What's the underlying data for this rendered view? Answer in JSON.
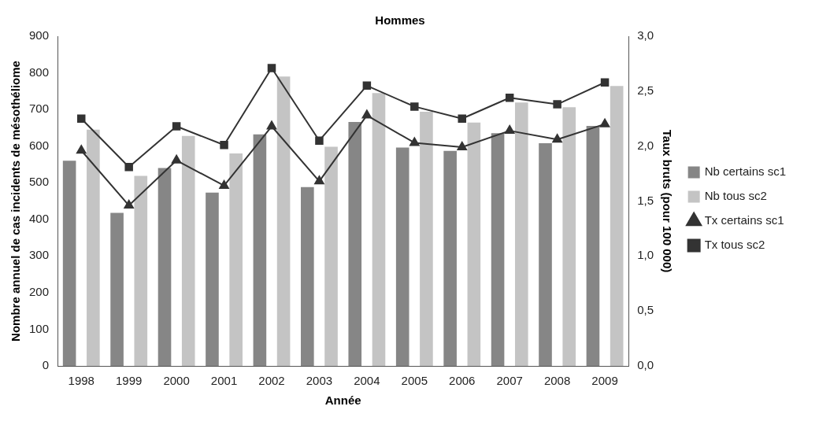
{
  "chart_data": {
    "type": "bar",
    "title": "Hommes",
    "xlabel": "Année",
    "ylabel": "Nombre annuel de cas incidents de mésothéliome",
    "y2label": "Taux bruts (pour 100 000)",
    "categories": [
      "1998",
      "1999",
      "2000",
      "2001",
      "2002",
      "2003",
      "2004",
      "2005",
      "2006",
      "2007",
      "2008",
      "2009"
    ],
    "series": [
      {
        "name": "Nb certains sc1",
        "color": "#868686",
        "values": [
          560,
          418,
          540,
          473,
          632,
          488,
          666,
          596,
          587,
          635,
          608,
          655
        ]
      },
      {
        "name": "Nb tous sc2",
        "color": "#c4c4c4",
        "values": [
          645,
          519,
          628,
          580,
          790,
          598,
          745,
          694,
          664,
          719,
          706,
          764
        ]
      },
      {
        "name": "Tx certains sc1",
        "type": "line",
        "axis": "y2",
        "marker": "triangle",
        "color": "#333333",
        "values": [
          1.96,
          1.46,
          1.87,
          1.64,
          2.18,
          1.68,
          2.28,
          2.03,
          1.99,
          2.14,
          2.06,
          2.2
        ]
      },
      {
        "name": "Tx tous sc2",
        "type": "line",
        "axis": "y2",
        "marker": "square",
        "color": "#333333",
        "values": [
          2.25,
          1.81,
          2.18,
          2.01,
          2.71,
          2.05,
          2.55,
          2.36,
          2.25,
          2.44,
          2.38,
          2.58
        ]
      }
    ],
    "ylim": [
      0,
      900
    ],
    "yticks": [
      0,
      100,
      200,
      300,
      400,
      500,
      600,
      700,
      800,
      900
    ],
    "y2lim": [
      0,
      3
    ],
    "y2ticks": [
      {
        "value": 0,
        "label": "0,0"
      },
      {
        "value": 0.5,
        "label": "0,5"
      },
      {
        "value": 1,
        "label": "1,0"
      },
      {
        "value": 1.5,
        "label": "1,5"
      },
      {
        "value": 2,
        "label": "2,0"
      },
      {
        "value": 2.5,
        "label": "2,5"
      },
      {
        "value": 3,
        "label": "3,0"
      }
    ],
    "grid": false,
    "legend": "right",
    "line_style": "solid"
  }
}
